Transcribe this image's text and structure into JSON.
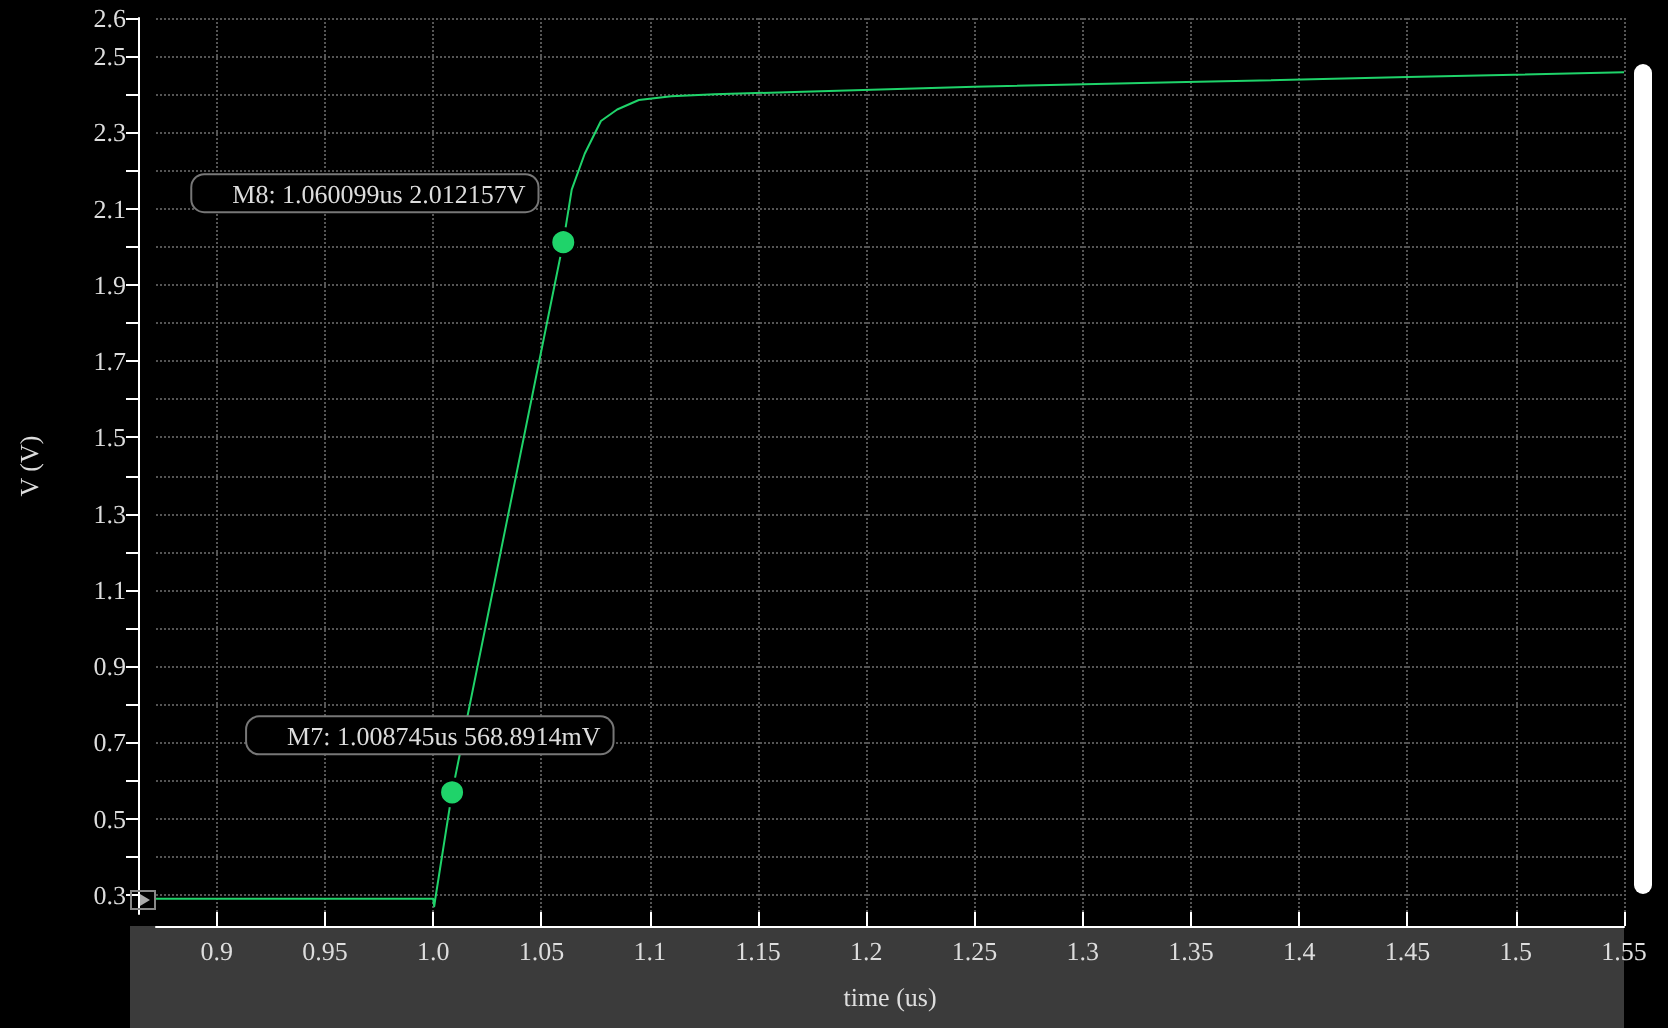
{
  "chart_data": {
    "type": "line",
    "xlabel": "time (us)",
    "ylabel": "V (V)",
    "series": [
      {
        "color": "#1fd36a",
        "x": [
          0.872,
          0.95,
          1.0,
          1.0005,
          1.001,
          1.008745,
          1.060099,
          1.064,
          1.07,
          1.0775,
          1.085,
          1.095,
          1.11,
          1.13,
          1.167,
          1.25,
          1.348,
          1.45,
          1.55
        ],
        "values": [
          0.29,
          0.29,
          0.29,
          0.27,
          0.29,
          0.569,
          2.012,
          2.15,
          2.244,
          2.33,
          2.36,
          2.385,
          2.395,
          2.4,
          2.406,
          2.42,
          2.432,
          2.445,
          2.458
        ]
      }
    ],
    "annotations": [
      {
        "text": "M7: 1.008745us 568.8914mV",
        "x": 1.008745,
        "y": 0.569
      },
      {
        "text": "M8: 1.060099us 2.012157V",
        "x": 1.060099,
        "y": 2.012
      }
    ],
    "xlim": [
      0.872,
      1.55
    ],
    "ylim": [
      0.25,
      2.6
    ],
    "xticks": [
      0.9,
      0.95,
      {
        "value": 1,
        "label": "1.0"
      },
      1.05,
      1.1,
      1.15,
      1.2,
      1.25,
      1.3,
      1.35,
      1.4,
      1.45,
      1.5,
      1.55
    ],
    "yticks": [
      0.3,
      {
        "value": 0.4,
        "label": null
      },
      0.5,
      {
        "value": 0.6,
        "label": null
      },
      0.7,
      {
        "value": 0.8,
        "label": null
      },
      0.9,
      {
        "value": 1.0,
        "label": null
      },
      1.1,
      {
        "value": 1.2,
        "label": null
      },
      1.3,
      {
        "value": 1.4,
        "label": null
      },
      1.5,
      {
        "value": 1.6,
        "label": null
      },
      1.7,
      {
        "value": 1.8,
        "label": null
      },
      1.9,
      {
        "value": 2.0,
        "label": null
      },
      2.1,
      {
        "value": 2.2,
        "label": null
      },
      2.3,
      {
        "value": 2.4,
        "label": null
      },
      2.5,
      2.6
    ],
    "grid": true,
    "marker": "none",
    "line_style": "solid"
  }
}
